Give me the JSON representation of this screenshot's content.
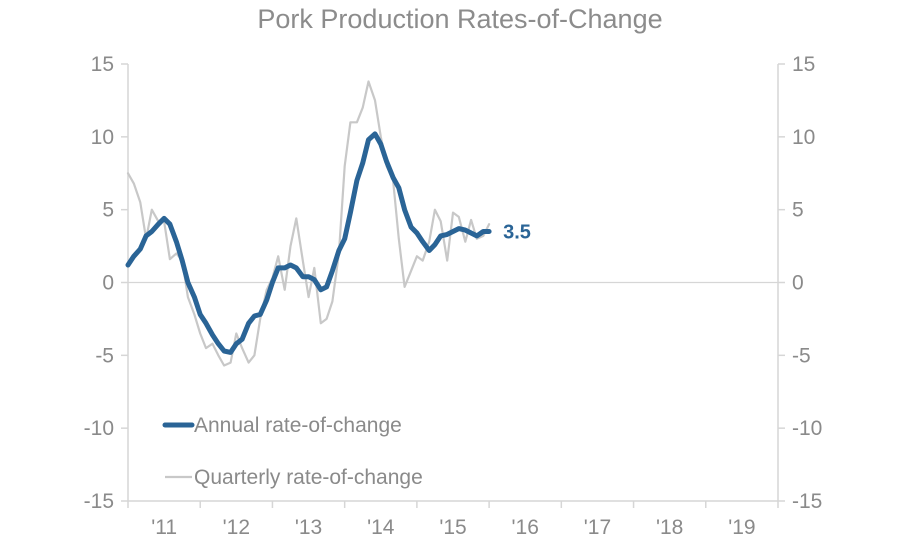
{
  "chart_data": {
    "type": "line",
    "title": "Pork Production Rates-of-Change",
    "xlabel": "",
    "ylabel": "",
    "x_range": [
      2010.5,
      2019.5
    ],
    "ylim": [
      -15,
      15
    ],
    "y_ticks": [
      15,
      10,
      5,
      0,
      -5,
      -10,
      -15
    ],
    "x_ticks": [
      {
        "label": "'11",
        "x": 2011
      },
      {
        "label": "'12",
        "x": 2012
      },
      {
        "label": "'13",
        "x": 2013
      },
      {
        "label": "'14",
        "x": 2014
      },
      {
        "label": "'15",
        "x": 2015
      },
      {
        "label": "'16",
        "x": 2016
      },
      {
        "label": "'17",
        "x": 2017
      },
      {
        "label": "'18",
        "x": 2018
      },
      {
        "label": "'19",
        "x": 2019
      }
    ],
    "grid": false,
    "legend_position": "bottom-left",
    "end_label": "3.5",
    "colors": {
      "annual": "#2a6496",
      "quarterly": "#c8c8c8",
      "axis": "#d6d6d6",
      "text": "#8a8a8a"
    },
    "series": [
      {
        "name": "Annual rate-of-change",
        "points": [
          [
            2010.5,
            1.2
          ],
          [
            2010.58,
            1.8
          ],
          [
            2010.67,
            2.3
          ],
          [
            2010.75,
            3.2
          ],
          [
            2010.83,
            3.5
          ],
          [
            2010.92,
            4.0
          ],
          [
            2011.0,
            4.4
          ],
          [
            2011.08,
            4.0
          ],
          [
            2011.17,
            2.8
          ],
          [
            2011.25,
            1.5
          ],
          [
            2011.33,
            0.0
          ],
          [
            2011.42,
            -1.0
          ],
          [
            2011.5,
            -2.2
          ],
          [
            2011.58,
            -2.8
          ],
          [
            2011.67,
            -3.6
          ],
          [
            2011.75,
            -4.2
          ],
          [
            2011.83,
            -4.7
          ],
          [
            2011.92,
            -4.8
          ],
          [
            2012.0,
            -4.2
          ],
          [
            2012.08,
            -3.9
          ],
          [
            2012.17,
            -2.8
          ],
          [
            2012.25,
            -2.3
          ],
          [
            2012.33,
            -2.2
          ],
          [
            2012.42,
            -1.2
          ],
          [
            2012.5,
            0.0
          ],
          [
            2012.58,
            1.0
          ],
          [
            2012.67,
            1.0
          ],
          [
            2012.75,
            1.2
          ],
          [
            2012.83,
            1.0
          ],
          [
            2012.92,
            0.4
          ],
          [
            2013.0,
            0.4
          ],
          [
            2013.08,
            0.2
          ],
          [
            2013.17,
            -0.5
          ],
          [
            2013.25,
            -0.3
          ],
          [
            2013.33,
            0.8
          ],
          [
            2013.42,
            2.2
          ],
          [
            2013.5,
            3.0
          ],
          [
            2013.58,
            4.8
          ],
          [
            2013.67,
            7.0
          ],
          [
            2013.75,
            8.2
          ],
          [
            2013.83,
            9.8
          ],
          [
            2013.92,
            10.2
          ],
          [
            2014.0,
            9.5
          ],
          [
            2014.08,
            8.3
          ],
          [
            2014.17,
            7.2
          ],
          [
            2014.25,
            6.5
          ],
          [
            2014.33,
            5.0
          ],
          [
            2014.42,
            3.8
          ],
          [
            2014.5,
            3.4
          ],
          [
            2014.58,
            2.8
          ],
          [
            2014.67,
            2.2
          ],
          [
            2014.75,
            2.6
          ],
          [
            2014.83,
            3.2
          ],
          [
            2014.92,
            3.3
          ],
          [
            2015.0,
            3.5
          ],
          [
            2015.08,
            3.7
          ],
          [
            2015.17,
            3.6
          ],
          [
            2015.25,
            3.4
          ],
          [
            2015.33,
            3.2
          ],
          [
            2015.42,
            3.5
          ],
          [
            2015.5,
            3.5
          ]
        ]
      },
      {
        "name": "Quarterly rate-of-change",
        "points": [
          [
            2010.5,
            7.5
          ],
          [
            2010.58,
            6.8
          ],
          [
            2010.67,
            5.5
          ],
          [
            2010.75,
            3.0
          ],
          [
            2010.83,
            5.0
          ],
          [
            2010.92,
            4.2
          ],
          [
            2011.0,
            4.2
          ],
          [
            2011.08,
            1.6
          ],
          [
            2011.17,
            2.0
          ],
          [
            2011.25,
            1.5
          ],
          [
            2011.33,
            -1.0
          ],
          [
            2011.42,
            -2.2
          ],
          [
            2011.5,
            -3.5
          ],
          [
            2011.58,
            -4.5
          ],
          [
            2011.67,
            -4.2
          ],
          [
            2011.75,
            -5.0
          ],
          [
            2011.83,
            -5.7
          ],
          [
            2011.92,
            -5.5
          ],
          [
            2012.0,
            -3.5
          ],
          [
            2012.08,
            -4.5
          ],
          [
            2012.17,
            -5.5
          ],
          [
            2012.25,
            -5.0
          ],
          [
            2012.33,
            -2.5
          ],
          [
            2012.42,
            -0.5
          ],
          [
            2012.5,
            0.3
          ],
          [
            2012.58,
            1.8
          ],
          [
            2012.67,
            -0.5
          ],
          [
            2012.75,
            2.5
          ],
          [
            2012.83,
            4.4
          ],
          [
            2012.92,
            1.5
          ],
          [
            2013.0,
            -1.0
          ],
          [
            2013.08,
            1.0
          ],
          [
            2013.17,
            -2.8
          ],
          [
            2013.25,
            -2.5
          ],
          [
            2013.33,
            -1.3
          ],
          [
            2013.42,
            2.0
          ],
          [
            2013.5,
            8.0
          ],
          [
            2013.58,
            11.0
          ],
          [
            2013.67,
            11.0
          ],
          [
            2013.75,
            12.0
          ],
          [
            2013.83,
            13.8
          ],
          [
            2013.92,
            12.5
          ],
          [
            2014.0,
            10.0
          ],
          [
            2014.08,
            8.0
          ],
          [
            2014.17,
            7.0
          ],
          [
            2014.25,
            3.0
          ],
          [
            2014.33,
            -0.3
          ],
          [
            2014.42,
            0.8
          ],
          [
            2014.5,
            1.8
          ],
          [
            2014.58,
            1.5
          ],
          [
            2014.67,
            2.8
          ],
          [
            2014.75,
            5.0
          ],
          [
            2014.83,
            4.2
          ],
          [
            2014.92,
            1.5
          ],
          [
            2015.0,
            4.8
          ],
          [
            2015.08,
            4.5
          ],
          [
            2015.17,
            2.8
          ],
          [
            2015.25,
            4.3
          ],
          [
            2015.33,
            3.0
          ],
          [
            2015.42,
            3.2
          ],
          [
            2015.5,
            4.0
          ]
        ]
      }
    ]
  }
}
